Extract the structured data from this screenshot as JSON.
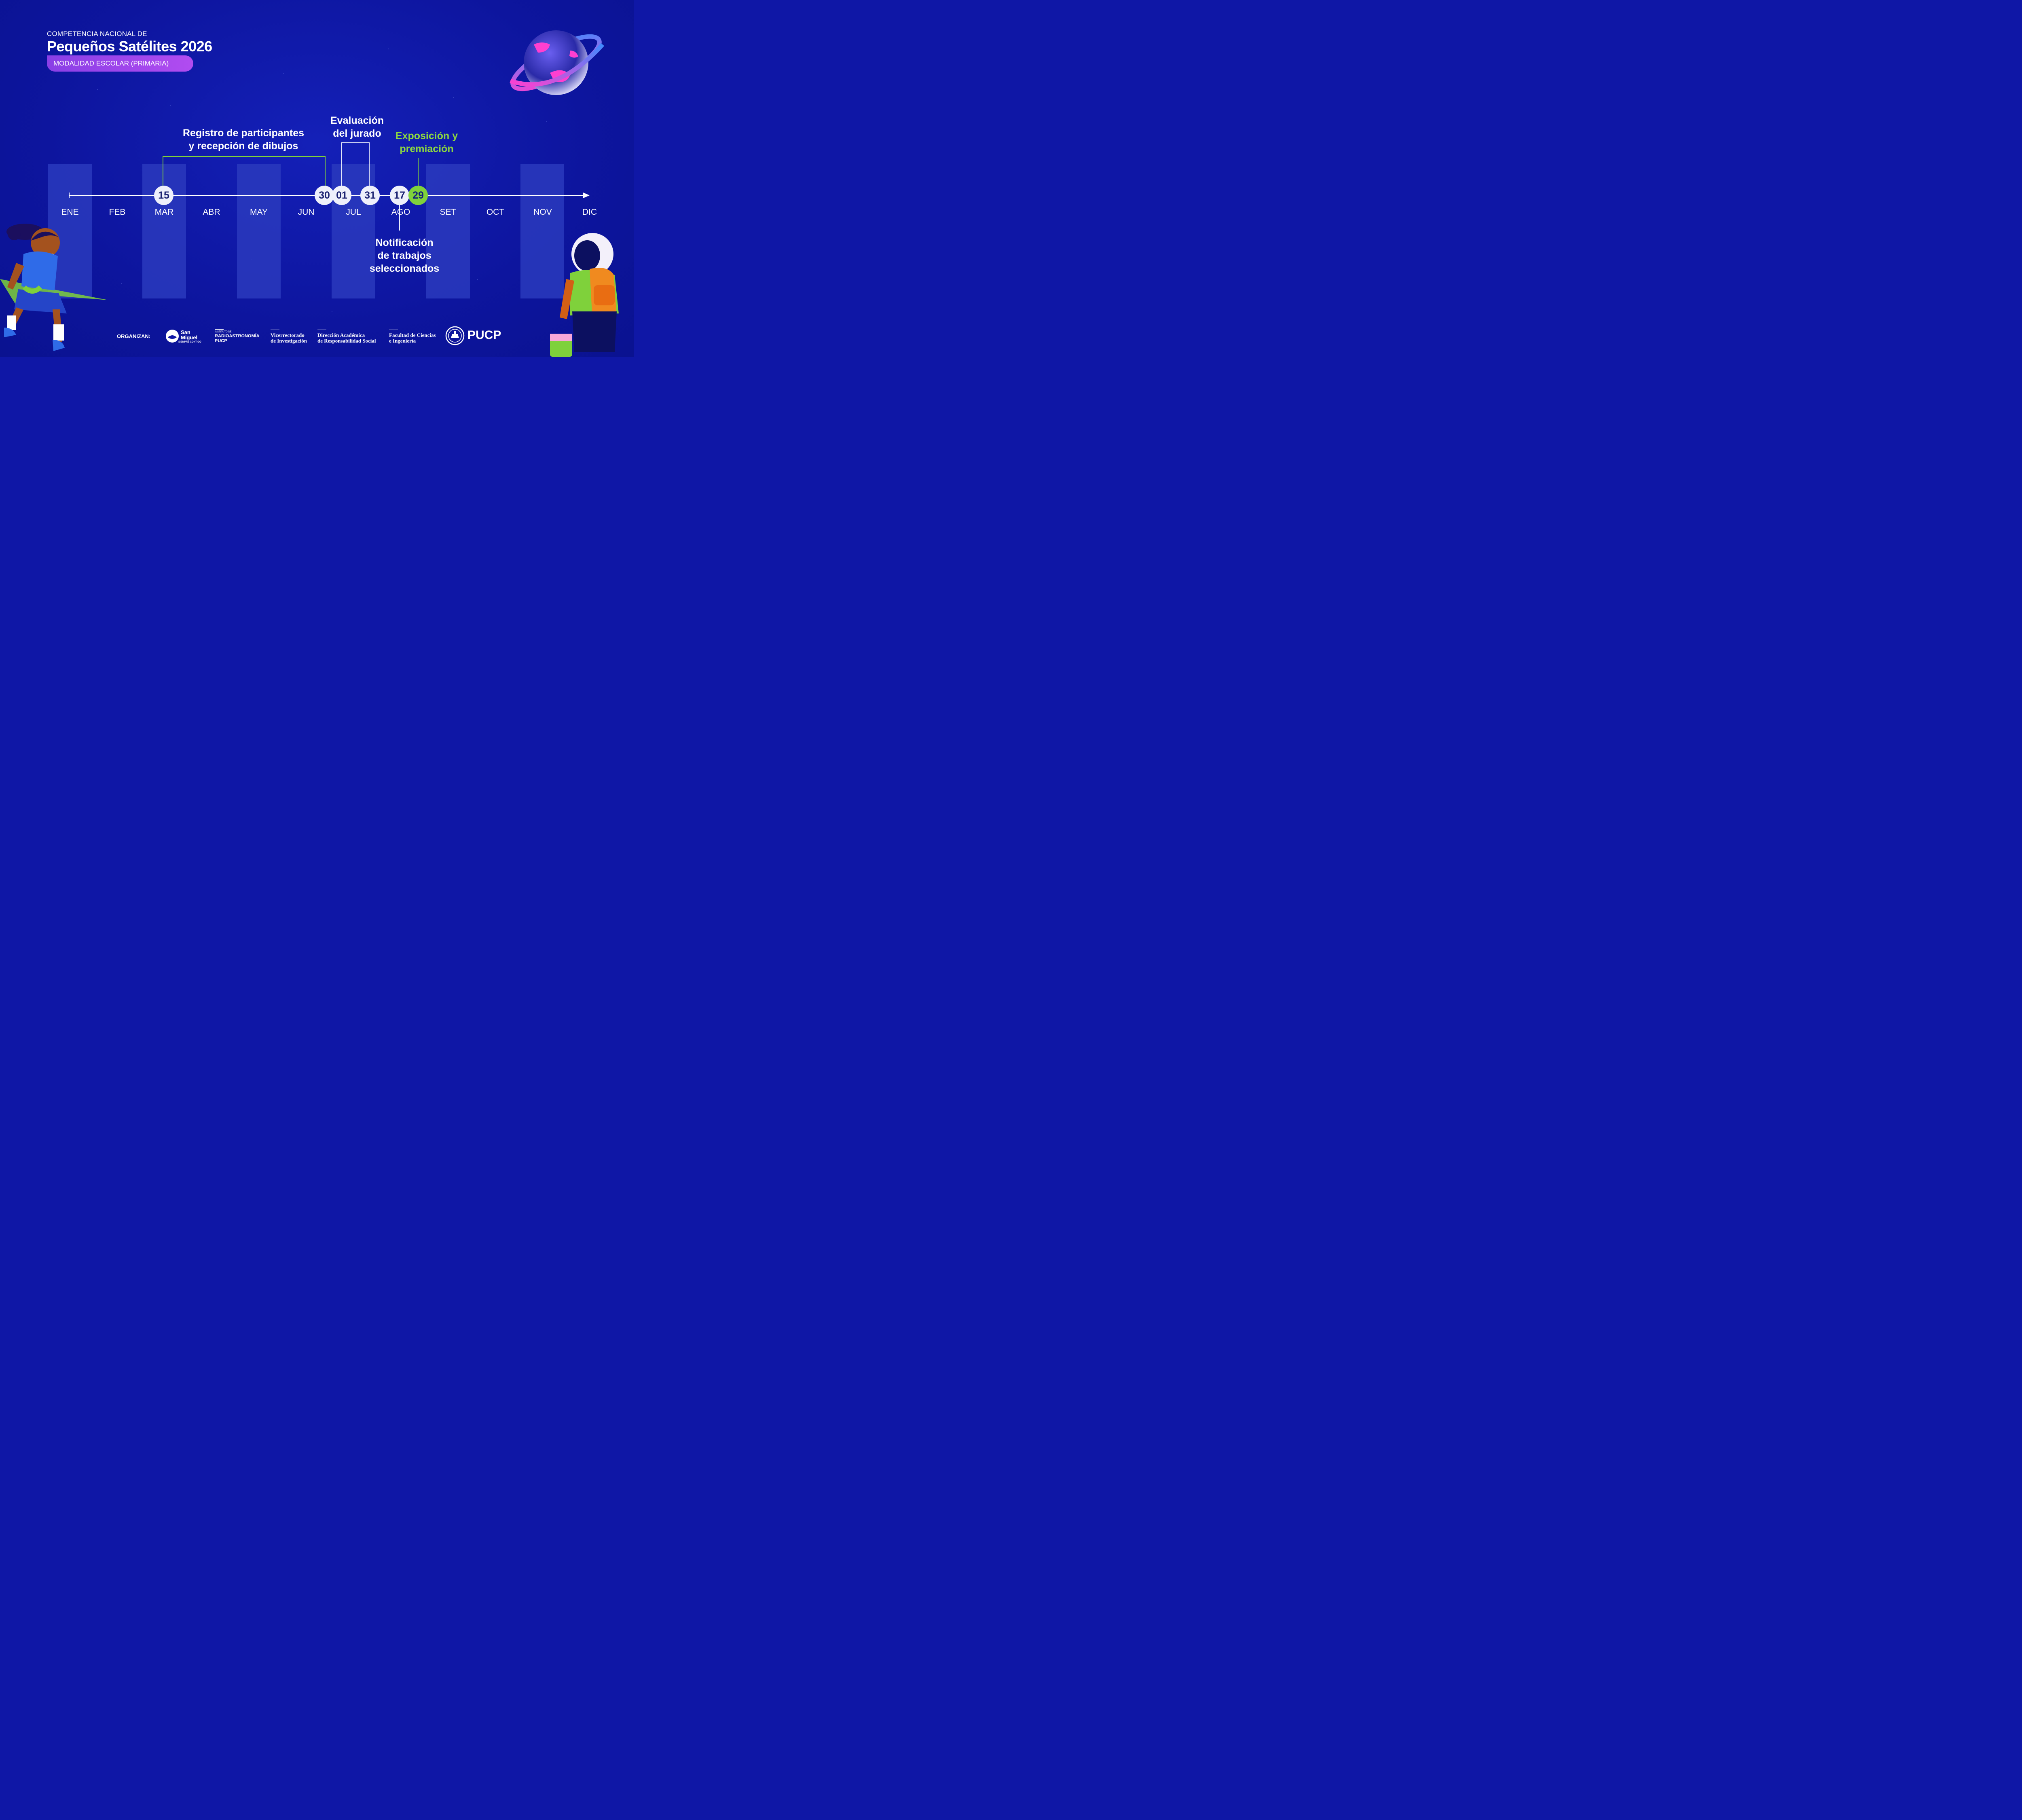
{
  "header": {
    "kicker": "COMPETENCIA NACIONAL DE",
    "title": "Pequeños Satélites 2026",
    "modality": "MODALIDAD ESCOLAR (PRIMARIA)"
  },
  "months": [
    "ENE",
    "FEB",
    "MAR",
    "ABR",
    "MAY",
    "JUN",
    "JUL",
    "AGO",
    "SET",
    "OCT",
    "NOV",
    "DIC"
  ],
  "dates": [
    {
      "day": "15",
      "month": "MAR",
      "highlight": false
    },
    {
      "day": "30",
      "month": "JUN",
      "highlight": false
    },
    {
      "day": "01",
      "month": "JUL",
      "highlight": false
    },
    {
      "day": "31",
      "month": "JUL",
      "highlight": false
    },
    {
      "day": "17",
      "month": "AGO",
      "highlight": false
    },
    {
      "day": "29",
      "month": "AGO",
      "highlight": true
    }
  ],
  "events": {
    "registro": {
      "line1": "Registro de participantes",
      "line2": "y recepción de dibujos",
      "from": "15 MAR",
      "to": "30 JUN"
    },
    "evaluacion": {
      "line1": "Evaluación",
      "line2": "del jurado",
      "from": "01 JUL",
      "to": "31 JUL"
    },
    "exposicion": {
      "line1": "Exposición y",
      "line2": "premiación",
      "date": "29 AGO"
    },
    "notificacion": {
      "line1": "Notificación",
      "line2": "de trabajos",
      "line3": "seleccionados",
      "date": "17 AGO"
    }
  },
  "footer": {
    "organizers_label": "ORGANIZAN:",
    "sanmiguel": {
      "line1": "San",
      "line2": "Miguel",
      "tagline": "SIEMPRE CONTIGO"
    },
    "radio": {
      "small": "INSTITUTO DE",
      "line1": "RADIOASTRONOMÍA",
      "line2": "PUCP"
    },
    "vri": {
      "line1": "Vicerrectorado",
      "line2": "de Investigación"
    },
    "dars": {
      "line1": "Dirección Académica",
      "line2": "de Responsabilidad Social"
    },
    "fci": {
      "line1": "Facultad de Ciencias",
      "line2": "e Ingeniería"
    },
    "pucp": "PUCP"
  },
  "colors": {
    "background": "#0f17a6",
    "accent_green": "#7fd13b",
    "pill_purple": "#a146ec",
    "column": "#2a3abd",
    "node": "#eef0fb"
  },
  "icons": [
    "planet-illustration",
    "girl-illustration",
    "astronaut-illustration",
    "sanmiguel-logo-icon",
    "pucp-shield-icon"
  ]
}
